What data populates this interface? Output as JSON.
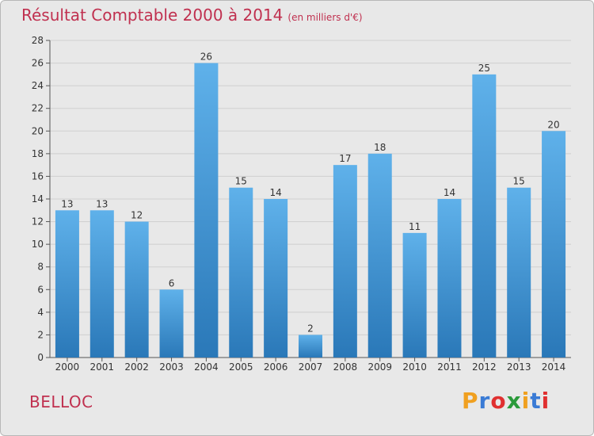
{
  "title": "Résultat Comptable 2000 à 2014",
  "subtitle": "(en milliers d'€)",
  "commune": "BELLOC",
  "logo": {
    "text": "Proxiti",
    "letters": [
      "P",
      "r",
      "o",
      "x",
      "i",
      "t",
      "i"
    ],
    "colors": [
      "#f0a020",
      "#3a7bd5",
      "#e03030",
      "#2a9a3a",
      "#f0a020",
      "#3a7bd5",
      "#e03030"
    ]
  },
  "colors": {
    "accent": "#c0304f",
    "bar_top": "#5fb1ea",
    "bar_bottom": "#2a78b8",
    "background": "#e8e8e8"
  },
  "chart_data": {
    "type": "bar",
    "title": "Résultat Comptable 2000 à 2014",
    "xlabel": "",
    "ylabel": "",
    "categories": [
      "2000",
      "2001",
      "2002",
      "2003",
      "2004",
      "2005",
      "2006",
      "2007",
      "2008",
      "2009",
      "2010",
      "2011",
      "2012",
      "2013",
      "2014"
    ],
    "values": [
      13,
      13,
      12,
      6,
      26,
      15,
      14,
      2,
      17,
      18,
      11,
      14,
      25,
      15,
      20
    ],
    "ylim": [
      0,
      28
    ],
    "yticks": [
      0,
      2,
      4,
      6,
      8,
      10,
      12,
      14,
      16,
      18,
      20,
      22,
      24,
      26,
      28
    ],
    "grid": true,
    "data_labels": true
  }
}
